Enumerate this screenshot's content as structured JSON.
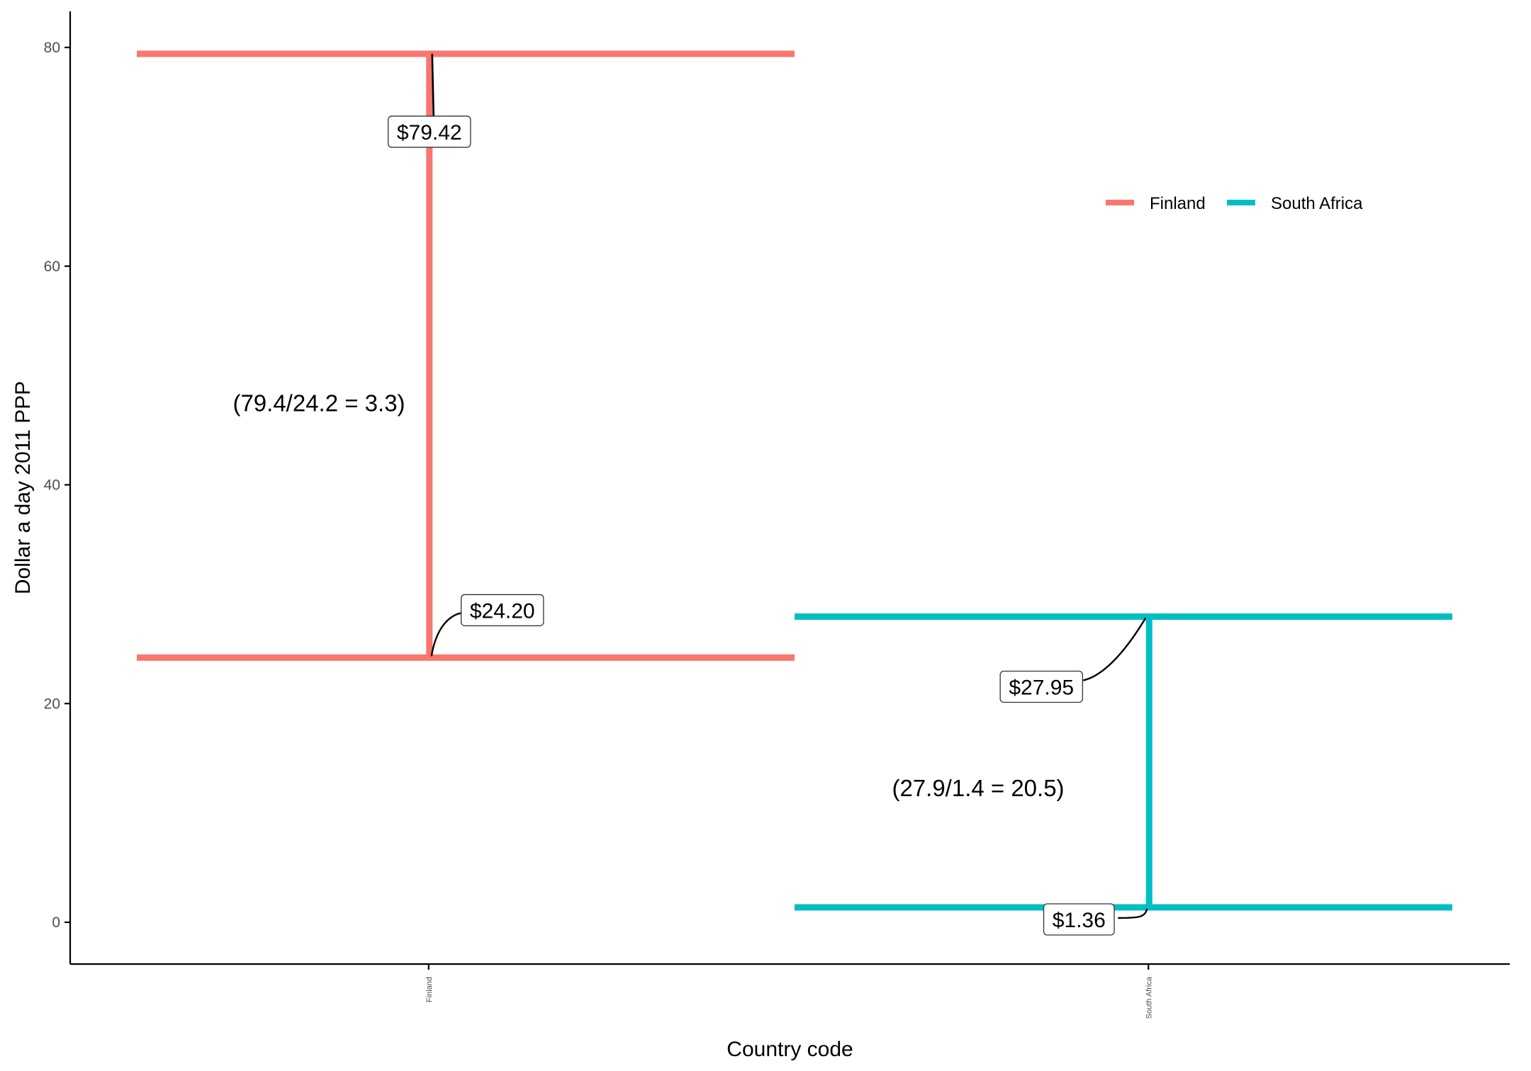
{
  "chart_data": {
    "type": "line",
    "xlabel": "Country code",
    "ylabel": "Dollar a day 2011 PPP",
    "ylim": [
      -4,
      84
    ],
    "yticks": [
      0,
      20,
      40,
      60,
      80
    ],
    "categories": [
      "Finland",
      "South Africa"
    ],
    "grid": false,
    "legend_position": "top-right",
    "series": [
      {
        "name": "Finland",
        "color": "#F8766D",
        "high": 79.42,
        "low": 24.2,
        "high_label": "$79.42",
        "low_label": "$24.20",
        "ratio_label": "(79.4/24.2  = 3.3)",
        "ratio_y": 47.5
      },
      {
        "name": "South Africa",
        "color": "#00BFC4",
        "high": 27.95,
        "low": 1.36,
        "high_label": "$27.95",
        "low_label": "$1.36",
        "ratio_label": "(27.9/1.4  = 20.5)",
        "ratio_y": 12.3
      }
    ]
  }
}
